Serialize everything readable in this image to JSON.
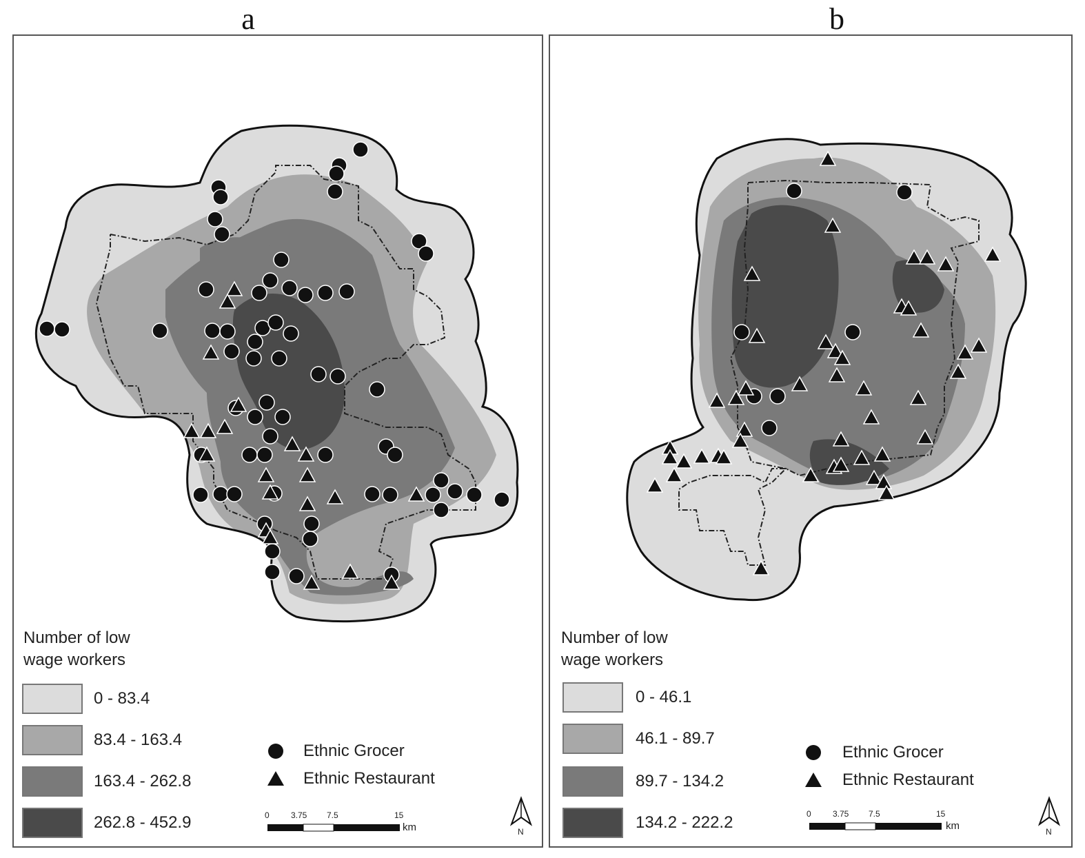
{
  "panels": [
    {
      "letter": "a",
      "legend": {
        "title_line1": "Number of low",
        "title_line2": "wage workers",
        "classes": [
          {
            "label": "0 - 83.4",
            "color": "#dcdcdc"
          },
          {
            "label": "83.4 - 163.4",
            "color": "#a8a8a8"
          },
          {
            "label": "163.4 - 262.8",
            "color": "#7a7a7a"
          },
          {
            "label": "262.8 - 452.9",
            "color": "#4a4a4a"
          }
        ],
        "grocer_label": "Ethnic Grocer",
        "restaurant_label": "Ethnic Restaurant"
      },
      "scale": {
        "ticks": [
          "0",
          "3.75",
          "7.5",
          "15"
        ],
        "unit": "km"
      },
      "north": "N"
    },
    {
      "letter": "b",
      "legend": {
        "title_line1": "Number of low",
        "title_line2": "wage workers",
        "classes": [
          {
            "label": "0 - 46.1",
            "color": "#dcdcdc"
          },
          {
            "label": "46.1 - 89.7",
            "color": "#a8a8a8"
          },
          {
            "label": "89.7 - 134.2",
            "color": "#7a7a7a"
          },
          {
            "label": "134.2 - 222.2",
            "color": "#4a4a4a"
          }
        ],
        "grocer_label": "Ethnic Grocer",
        "restaurant_label": "Ethnic Restaurant"
      },
      "scale": {
        "ticks": [
          "0",
          "3.75",
          "7.5",
          "15"
        ],
        "unit": "km"
      },
      "north": "N"
    }
  ]
}
